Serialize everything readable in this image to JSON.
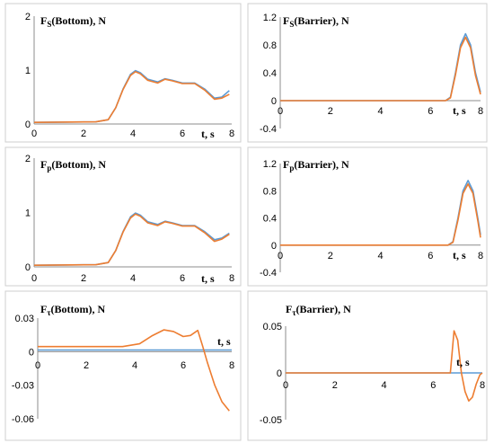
{
  "series_colors": {
    "blue": "#5b9bd5",
    "orange": "#ed7d31"
  },
  "chart_data": [
    {
      "type": "line",
      "title_main": "F",
      "title_sub": "S",
      "title_rest": "(Bottom), N",
      "xlabel": "t, s",
      "xlim": [
        0,
        8
      ],
      "ylim": [
        0,
        2
      ],
      "xticks": [
        "0",
        "2",
        "4",
        "6",
        "8"
      ],
      "yticks": [
        "0",
        "1",
        "2"
      ],
      "xtick_values": [
        0,
        2,
        4,
        6,
        8
      ],
      "ytick_values": [
        0,
        1,
        2
      ],
      "series": [
        {
          "color": "blue",
          "x": [
            0,
            2.5,
            3.0,
            3.3,
            3.6,
            3.9,
            4.1,
            4.3,
            4.6,
            5.0,
            5.3,
            5.6,
            6.0,
            6.5,
            6.9,
            7.3,
            7.6,
            7.9
          ],
          "y": [
            0.03,
            0.04,
            0.08,
            0.3,
            0.65,
            0.92,
            0.99,
            0.95,
            0.83,
            0.78,
            0.84,
            0.81,
            0.76,
            0.76,
            0.65,
            0.48,
            0.5,
            0.62
          ]
        },
        {
          "color": "orange",
          "x": [
            0,
            2.5,
            3.0,
            3.3,
            3.6,
            3.9,
            4.1,
            4.3,
            4.6,
            5.0,
            5.3,
            5.6,
            6.0,
            6.5,
            6.9,
            7.3,
            7.6,
            7.9
          ],
          "y": [
            0.03,
            0.04,
            0.08,
            0.3,
            0.64,
            0.9,
            0.97,
            0.93,
            0.81,
            0.76,
            0.83,
            0.8,
            0.75,
            0.75,
            0.63,
            0.46,
            0.48,
            0.55
          ]
        }
      ]
    },
    {
      "type": "line",
      "title_main": "F",
      "title_sub": "S",
      "title_rest": "(Barrier), N",
      "xlabel": "t, s",
      "xlim": [
        0,
        8
      ],
      "ylim": [
        -0.4,
        1.2
      ],
      "xticks": [
        "0",
        "2",
        "4",
        "6",
        "8"
      ],
      "yticks": [
        "-0.4",
        "0",
        "0.4",
        "0.8",
        "1.2"
      ],
      "xtick_values": [
        0,
        2,
        4,
        6,
        8
      ],
      "ytick_values": [
        -0.4,
        0,
        0.4,
        0.8,
        1.2
      ],
      "series": [
        {
          "color": "blue",
          "x": [
            0,
            6.6,
            6.8,
            7.0,
            7.2,
            7.4,
            7.6,
            7.8,
            8.0
          ],
          "y": [
            0,
            0,
            0.05,
            0.4,
            0.8,
            0.96,
            0.8,
            0.4,
            0.12
          ]
        },
        {
          "color": "orange",
          "x": [
            0,
            6.6,
            6.8,
            7.0,
            7.2,
            7.4,
            7.6,
            7.8,
            8.0
          ],
          "y": [
            0,
            0,
            0.04,
            0.37,
            0.76,
            0.91,
            0.76,
            0.36,
            0.09
          ]
        }
      ]
    },
    {
      "type": "line",
      "title_main": "F",
      "title_sub": "p",
      "title_rest": "(Bottom), N",
      "xlabel": "t, s",
      "xlim": [
        0,
        8
      ],
      "ylim": [
        0,
        2
      ],
      "xticks": [
        "0",
        "2",
        "4",
        "6",
        "8"
      ],
      "yticks": [
        "0",
        "1",
        "2"
      ],
      "xtick_values": [
        0,
        2,
        4,
        6,
        8
      ],
      "ytick_values": [
        0,
        1,
        2
      ],
      "series": [
        {
          "color": "blue",
          "x": [
            0,
            2.5,
            3.0,
            3.3,
            3.6,
            3.9,
            4.1,
            4.3,
            4.6,
            5.0,
            5.3,
            5.6,
            6.0,
            6.5,
            6.9,
            7.3,
            7.6,
            7.9
          ],
          "y": [
            0.03,
            0.04,
            0.08,
            0.3,
            0.65,
            0.92,
            0.99,
            0.95,
            0.83,
            0.78,
            0.84,
            0.81,
            0.76,
            0.76,
            0.65,
            0.5,
            0.53,
            0.62
          ]
        },
        {
          "color": "orange",
          "x": [
            0,
            2.5,
            3.0,
            3.3,
            3.6,
            3.9,
            4.1,
            4.3,
            4.6,
            5.0,
            5.3,
            5.6,
            6.0,
            6.5,
            6.9,
            7.3,
            7.6,
            7.9
          ],
          "y": [
            0.03,
            0.04,
            0.08,
            0.3,
            0.64,
            0.9,
            0.97,
            0.93,
            0.81,
            0.76,
            0.83,
            0.8,
            0.75,
            0.75,
            0.63,
            0.47,
            0.51,
            0.6
          ]
        }
      ]
    },
    {
      "type": "line",
      "title_main": "F",
      "title_sub": "p",
      "title_rest": "(Barrier), N",
      "xlabel": "t, s",
      "xlim": [
        0,
        8
      ],
      "ylim": [
        -0.4,
        1.2
      ],
      "xticks": [
        "0",
        "2",
        "4",
        "6",
        "8"
      ],
      "yticks": [
        "-0.4",
        "0",
        "0.4",
        "0.8",
        "1.2"
      ],
      "xtick_values": [
        0,
        2,
        4,
        6,
        8
      ],
      "ytick_values": [
        -0.4,
        0,
        0.4,
        0.8,
        1.2
      ],
      "series": [
        {
          "color": "blue",
          "x": [
            0,
            6.7,
            6.9,
            7.1,
            7.3,
            7.5,
            7.7,
            7.9,
            8.0
          ],
          "y": [
            0,
            0,
            0.05,
            0.4,
            0.8,
            0.95,
            0.8,
            0.38,
            0.15
          ]
        },
        {
          "color": "orange",
          "x": [
            0,
            6.7,
            6.9,
            7.1,
            7.3,
            7.5,
            7.7,
            7.9,
            8.0
          ],
          "y": [
            0,
            0,
            0.04,
            0.37,
            0.76,
            0.9,
            0.76,
            0.34,
            0.11
          ]
        }
      ]
    },
    {
      "type": "line",
      "title_main": "F",
      "title_sub": "τ",
      "title_rest": "(Bottom), N",
      "xlabel": "t, s",
      "xlim": [
        0,
        8
      ],
      "ylim": [
        -0.06,
        0.03
      ],
      "xticks": [
        "0",
        "2",
        "4",
        "6",
        "8"
      ],
      "yticks": [
        "-0.06",
        "-0.03",
        "0",
        "0.03"
      ],
      "xtick_values": [
        0,
        2,
        4,
        6,
        8
      ],
      "ytick_values": [
        -0.06,
        -0.03,
        0,
        0.03
      ],
      "series": [
        {
          "color": "blue",
          "x": [
            0,
            8
          ],
          "y": [
            0.0015,
            0.0015
          ]
        },
        {
          "color": "orange",
          "x": [
            0,
            3.5,
            4.2,
            4.7,
            5.2,
            5.6,
            6.0,
            6.3,
            6.6,
            6.8,
            7.0,
            7.3,
            7.6,
            7.9
          ],
          "y": [
            0.0045,
            0.0045,
            0.007,
            0.014,
            0.0195,
            0.018,
            0.0135,
            0.0145,
            0.019,
            0.005,
            -0.01,
            -0.03,
            -0.045,
            -0.053
          ]
        }
      ]
    },
    {
      "type": "line",
      "title_main": "F",
      "title_sub": "τ",
      "title_rest": "(Barrier), N",
      "xlabel": "t, s",
      "xlim": [
        0,
        8
      ],
      "ylim": [
        -0.05,
        0.05
      ],
      "xticks": [
        "0",
        "2",
        "4",
        "6",
        "8"
      ],
      "yticks": [
        "-0.05",
        "0",
        "0.05"
      ],
      "xtick_values": [
        0,
        2,
        4,
        6,
        8
      ],
      "ytick_values": [
        -0.05,
        0,
        0.05
      ],
      "series": [
        {
          "color": "blue",
          "x": [
            0,
            8
          ],
          "y": [
            0,
            0
          ]
        },
        {
          "color": "orange",
          "x": [
            0,
            6.7,
            6.85,
            7.0,
            7.15,
            7.3,
            7.45,
            7.6,
            7.75,
            7.9,
            8.0
          ],
          "y": [
            0,
            0,
            0.045,
            0.035,
            0.0,
            -0.02,
            -0.03,
            -0.026,
            -0.012,
            -0.002,
            0.0
          ]
        }
      ]
    }
  ]
}
